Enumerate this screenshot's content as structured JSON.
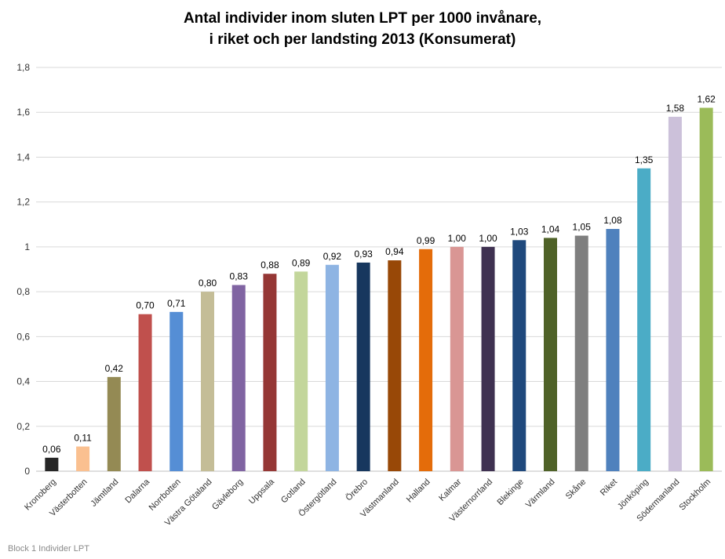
{
  "chart_data": {
    "type": "bar",
    "title_line1": "Antal individer inom sluten LPT per 1000 invånare,",
    "title_line2": "i riket och per landsting 2013 (Konsumerat)",
    "xlabel": "",
    "ylabel": "",
    "ylim": [
      0,
      1.8
    ],
    "y_ticks": [
      "0",
      "0,2",
      "0,4",
      "0,6",
      "0,8",
      "1",
      "1,2",
      "1,4",
      "1,6",
      "1,8"
    ],
    "grid": true,
    "legend": "none",
    "categories": [
      "Kronoberg",
      "Västerbotten",
      "Jämtland",
      "Dalarna",
      "Norrbotten",
      "Västra Götaland",
      "Gävleborg",
      "Uppsala",
      "Gotland",
      "Östergötland",
      "Örebro",
      "Västmanland",
      "Halland",
      "Kalmar",
      "Västernorrland",
      "Blekinge",
      "Värmland",
      "Skåne",
      "Riket",
      "Jönköping",
      "Södermanland",
      "Stockholm"
    ],
    "values": [
      0.06,
      0.11,
      0.42,
      0.7,
      0.71,
      0.8,
      0.83,
      0.88,
      0.89,
      0.92,
      0.93,
      0.94,
      0.99,
      1.0,
      1.0,
      1.03,
      1.04,
      1.05,
      1.08,
      1.35,
      1.58,
      1.62
    ],
    "data_labels": [
      "0,06",
      "0,11",
      "0,42",
      "0,70",
      "0,71",
      "0,80",
      "0,83",
      "0,88",
      "0,89",
      "0,92",
      "0,93",
      "0,94",
      "0,99",
      "1,00",
      "1,00",
      "1,03",
      "1,04",
      "1,05",
      "1,08",
      "1,35",
      "1,58",
      "1,62"
    ],
    "colors": [
      "#262626",
      "#fac090",
      "#948a54",
      "#c0504d",
      "#558ed5",
      "#c4bd97",
      "#8064a2",
      "#953735",
      "#c3d69b",
      "#8eb4e3",
      "#17375e",
      "#984807",
      "#e46c0a",
      "#d99694",
      "#3f3151",
      "#1f497d",
      "#4f6228",
      "#7f7f7f",
      "#4f81bd",
      "#4bacc6",
      "#ccc1da",
      "#9bbb59"
    ]
  },
  "footer_text": "Block 1 Individer LPT"
}
